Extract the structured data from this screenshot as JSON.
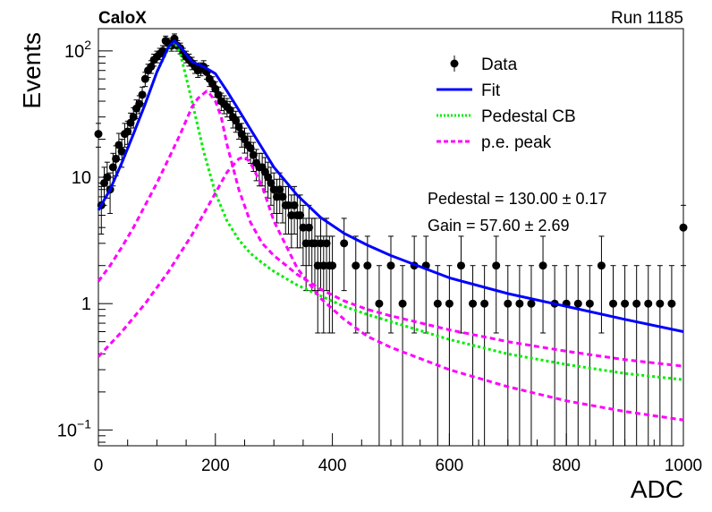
{
  "header": {
    "experiment": "CaloX",
    "run": "Run 1185"
  },
  "stats": {
    "pedestal": "Pedestal = 130.00 ± 0.17",
    "gain": "Gain = 57.60 ± 2.69"
  },
  "chart_data": {
    "type": "scatter",
    "xlabel": "ADC",
    "ylabel": "Events",
    "xlim": [
      0,
      1000
    ],
    "ylim": [
      0.075,
      150
    ],
    "yscale": "log",
    "x_ticks": [
      "0",
      "200",
      "400",
      "600",
      "800",
      "1000"
    ],
    "y_ticks": [
      {
        "value": 100,
        "base": "10",
        "exp": "2"
      },
      {
        "value": 10,
        "base": "10",
        "exp": ""
      },
      {
        "value": 1,
        "base": "1",
        "exp": ""
      },
      {
        "value": 0.1,
        "base": "10",
        "exp": "−1"
      }
    ],
    "legend": {
      "position": "top-right",
      "entries": [
        {
          "label": "Data",
          "style": "points",
          "color": "#000000"
        },
        {
          "label": "Fit",
          "style": "solid",
          "color": "#0000ff"
        },
        {
          "label": "Pedestal CB",
          "style": "dotted",
          "color": "#00ee00"
        },
        {
          "label": "p.e. peak",
          "style": "dashed",
          "color": "#ff00ff"
        }
      ]
    },
    "data_points": {
      "x": [
        0,
        5,
        10,
        15,
        20,
        25,
        30,
        35,
        40,
        45,
        50,
        55,
        60,
        65,
        70,
        75,
        80,
        85,
        90,
        95,
        100,
        105,
        110,
        115,
        120,
        125,
        130,
        135,
        140,
        145,
        150,
        155,
        160,
        165,
        170,
        175,
        180,
        185,
        190,
        195,
        200,
        205,
        210,
        215,
        220,
        225,
        230,
        235,
        240,
        245,
        250,
        255,
        260,
        265,
        270,
        275,
        280,
        285,
        290,
        295,
        300,
        305,
        310,
        315,
        320,
        325,
        330,
        335,
        340,
        345,
        350,
        355,
        360,
        365,
        370,
        375,
        380,
        385,
        390,
        395,
        400,
        420,
        440,
        460,
        480,
        500,
        520,
        540,
        560,
        580,
        600,
        620,
        640,
        660,
        680,
        700,
        720,
        740,
        760,
        780,
        800,
        820,
        840,
        860,
        880,
        900,
        920,
        940,
        960,
        980,
        1000
      ],
      "y": [
        22,
        6,
        9,
        10,
        8,
        12,
        14,
        18,
        16,
        22,
        23,
        27,
        30,
        35,
        38,
        45,
        60,
        70,
        75,
        85,
        90,
        95,
        100,
        120,
        115,
        110,
        125,
        110,
        105,
        95,
        90,
        85,
        80,
        75,
        70,
        72,
        75,
        68,
        60,
        55,
        50,
        45,
        40,
        38,
        36,
        34,
        30,
        28,
        25,
        22,
        20,
        18,
        17,
        15,
        13,
        12,
        12,
        11,
        10,
        9,
        8,
        7,
        8,
        7,
        6,
        6,
        5,
        6,
        5,
        5,
        4,
        3,
        4,
        3,
        3,
        2,
        3,
        2,
        3,
        2,
        2,
        3,
        2,
        2,
        1,
        2,
        1,
        2,
        2,
        1,
        1,
        2,
        1,
        1,
        2,
        1,
        1,
        1,
        2,
        1,
        1,
        1,
        1,
        2,
        1,
        1,
        1,
        1,
        1,
        1,
        4
      ]
    },
    "series": [
      {
        "name": "Fit",
        "x": [
          0,
          20,
          40,
          60,
          80,
          100,
          120,
          130,
          140,
          160,
          180,
          200,
          220,
          240,
          260,
          280,
          300,
          340,
          380,
          420,
          460,
          500,
          600,
          700,
          800,
          900,
          1000
        ],
        "y": [
          5.5,
          8,
          13,
          22,
          38,
          68,
          108,
          120,
          108,
          82,
          75,
          66,
          48,
          34,
          24,
          17,
          12,
          7.2,
          4.8,
          3.6,
          2.9,
          2.4,
          1.6,
          1.2,
          0.95,
          0.75,
          0.6
        ]
      },
      {
        "name": "Pedestal CB",
        "x": [
          0,
          20,
          40,
          60,
          80,
          100,
          120,
          130,
          140,
          150,
          160,
          180,
          200,
          220,
          240,
          260,
          280,
          300,
          340,
          380,
          420,
          460,
          500,
          600,
          700,
          800,
          900,
          1000
        ],
        "y": [
          5.5,
          8,
          13,
          22,
          38,
          68,
          105,
          118,
          95,
          62,
          40,
          16,
          7.5,
          4.5,
          3.2,
          2.5,
          2.1,
          1.8,
          1.4,
          1.15,
          0.95,
          0.82,
          0.72,
          0.52,
          0.4,
          0.33,
          0.28,
          0.25
        ]
      },
      {
        "name": "p.e. peak",
        "x": [
          0,
          20,
          40,
          60,
          80,
          100,
          120,
          140,
          160,
          170,
          180,
          185,
          190,
          200,
          210,
          220,
          240,
          260,
          280,
          300,
          340,
          380,
          420,
          460,
          500,
          600,
          700,
          800,
          900,
          1000
        ],
        "y": [
          1.5,
          2,
          2.8,
          4,
          6,
          9,
          14,
          22,
          36,
          42,
          46,
          48,
          46,
          40,
          30,
          18,
          8,
          4.4,
          3,
          2.4,
          1.7,
          1.3,
          1.05,
          0.9,
          0.8,
          0.62,
          0.5,
          0.42,
          0.36,
          0.32
        ]
      },
      {
        "name": "p.e. peak",
        "x": [
          0,
          40,
          80,
          120,
          160,
          200,
          220,
          240,
          250,
          260,
          280,
          300,
          340,
          380,
          420,
          460,
          500,
          600,
          700,
          800,
          900,
          1000
        ],
        "y": [
          0.38,
          0.6,
          1,
          1.8,
          3.5,
          7.5,
          11,
          14,
          14.5,
          13,
          8.5,
          4.5,
          1.9,
          1.1,
          0.75,
          0.55,
          0.45,
          0.3,
          0.22,
          0.17,
          0.14,
          0.12
        ]
      }
    ]
  }
}
